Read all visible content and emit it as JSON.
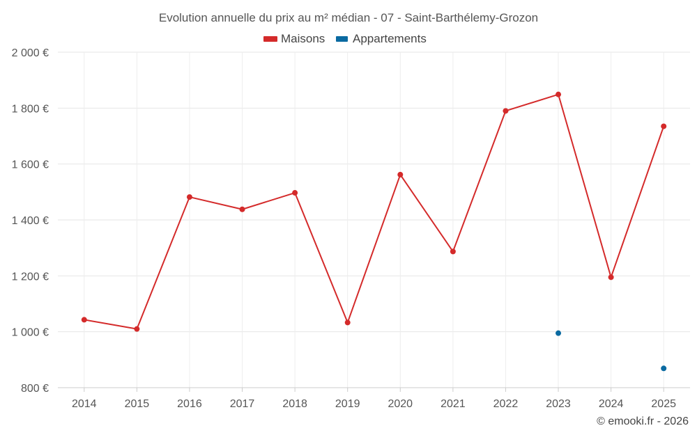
{
  "chart_data": {
    "type": "line",
    "title": "Evolution annuelle du prix au m² médian - 07 - Saint-Barthélemy-Grozon",
    "categories": [
      "2014",
      "2015",
      "2016",
      "2017",
      "2018",
      "2019",
      "2020",
      "2021",
      "2022",
      "2023",
      "2024",
      "2025"
    ],
    "series": [
      {
        "name": "Maisons",
        "color": "#d42a2a",
        "values": [
          1043,
          1010,
          1482,
          1438,
          1497,
          1033,
          1562,
          1287,
          1790,
          1849,
          1195,
          1735
        ],
        "show_line": true
      },
      {
        "name": "Appartements",
        "color": "#0a6aa1",
        "values": [
          null,
          null,
          null,
          null,
          null,
          null,
          null,
          null,
          null,
          995,
          null,
          869
        ],
        "show_line": false
      }
    ],
    "ylim": [
      800,
      2000
    ],
    "yticks": [
      800,
      1000,
      1200,
      1400,
      1600,
      1800,
      2000
    ],
    "ytick_labels": [
      "800 €",
      "1 000 €",
      "1 200 €",
      "1 400 €",
      "1 600 €",
      "1 800 €",
      "2 000 €"
    ],
    "xlabel": "",
    "ylabel": "",
    "grid": true,
    "legend_position": "top-center"
  },
  "credit": "© emooki.fr - 2026"
}
